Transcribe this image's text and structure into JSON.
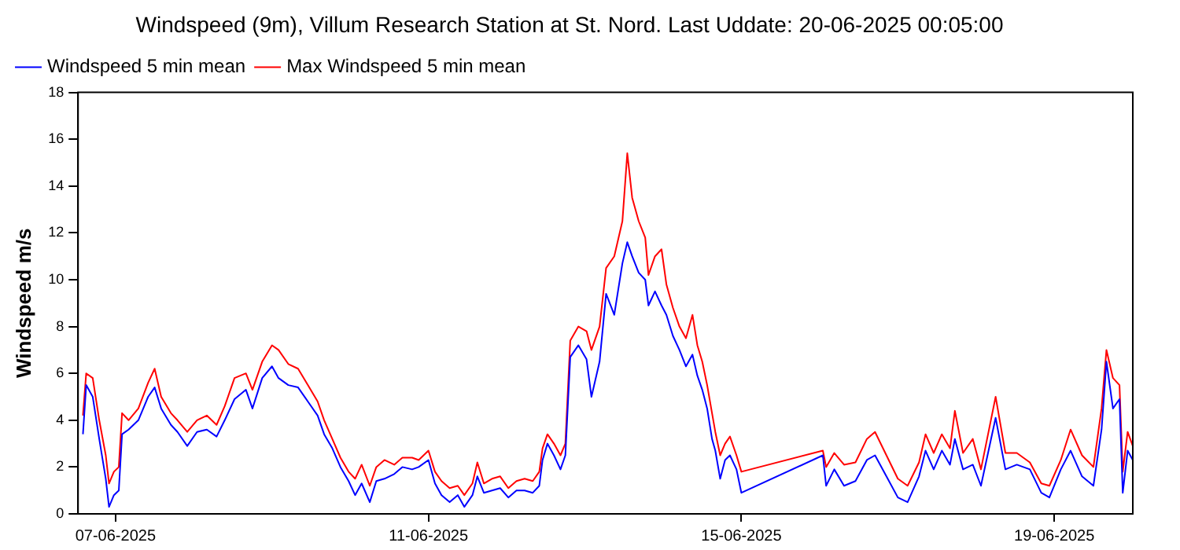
{
  "chart_data": {
    "type": "line",
    "title": "Windspeed (9m), Villum Research Station at St. Nord. Last Uddate: 20-06-2025 00:05:00",
    "ylabel": "Windspeed m/s",
    "x": [
      "2025-06-06T14:00",
      "2025-06-06T15:00",
      "2025-06-06T17:00",
      "2025-06-06T19:00",
      "2025-06-06T21:00",
      "2025-06-06T22:00",
      "2025-06-06T23:30",
      "2025-06-07T01:00",
      "2025-06-07T02:00",
      "2025-06-07T04:00",
      "2025-06-07T07:00",
      "2025-06-07T10:00",
      "2025-06-07T12:00",
      "2025-06-07T14:00",
      "2025-06-07T17:00",
      "2025-06-07T19:00",
      "2025-06-07T22:00",
      "2025-06-08T01:00",
      "2025-06-08T04:00",
      "2025-06-08T07:00",
      "2025-06-08T09:30",
      "2025-06-08T12:30",
      "2025-06-08T16:00",
      "2025-06-08T18:00",
      "2025-06-08T21:00",
      "2025-06-09T00:00",
      "2025-06-09T02:00",
      "2025-06-09T05:00",
      "2025-06-09T08:00",
      "2025-06-09T11:00",
      "2025-06-09T14:00",
      "2025-06-09T16:00",
      "2025-06-09T18:30",
      "2025-06-09T21:00",
      "2025-06-09T23:30",
      "2025-06-10T01:30",
      "2025-06-10T03:30",
      "2025-06-10T06:00",
      "2025-06-10T08:00",
      "2025-06-10T10:30",
      "2025-06-10T13:30",
      "2025-06-10T16:00",
      "2025-06-10T19:00",
      "2025-06-10T21:00",
      "2025-06-11T00:00",
      "2025-06-11T02:00",
      "2025-06-11T04:00",
      "2025-06-11T06:30",
      "2025-06-11T09:00",
      "2025-06-11T11:00",
      "2025-06-11T13:30",
      "2025-06-11T15:00",
      "2025-06-11T17:00",
      "2025-06-11T19:30",
      "2025-06-11T22:00",
      "2025-06-12T00:30",
      "2025-06-12T03:00",
      "2025-06-12T05:30",
      "2025-06-12T08:00",
      "2025-06-12T10:00",
      "2025-06-12T11:00",
      "2025-06-12T12:30",
      "2025-06-12T14:30",
      "2025-06-12T16:30",
      "2025-06-12T18:00",
      "2025-06-12T19:30",
      "2025-06-12T22:00",
      "2025-06-13T00:30",
      "2025-06-13T02:00",
      "2025-06-13T04:30",
      "2025-06-13T06:30",
      "2025-06-13T09:00",
      "2025-06-13T11:30",
      "2025-06-13T13:00",
      "2025-06-13T14:30",
      "2025-06-13T16:30",
      "2025-06-13T18:30",
      "2025-06-13T19:30",
      "2025-06-13T21:30",
      "2025-06-13T23:30",
      "2025-06-14T01:00",
      "2025-06-14T03:00",
      "2025-06-14T05:00",
      "2025-06-14T07:00",
      "2025-06-14T09:00",
      "2025-06-14T10:30",
      "2025-06-14T12:00",
      "2025-06-14T13:30",
      "2025-06-14T15:00",
      "2025-06-14T16:00",
      "2025-06-14T17:30",
      "2025-06-14T19:00",
      "2025-06-14T20:30",
      "2025-06-14T22:30",
      "2025-06-15T00:00",
      "2025-06-16T01:00",
      "2025-06-16T02:00",
      "2025-06-16T04:30",
      "2025-06-16T07:30",
      "2025-06-16T11:00",
      "2025-06-16T14:30",
      "2025-06-16T17:00",
      "2025-06-16T20:30",
      "2025-06-17T00:00",
      "2025-06-17T03:00",
      "2025-06-17T06:30",
      "2025-06-17T08:30",
      "2025-06-17T11:00",
      "2025-06-17T13:30",
      "2025-06-17T16:00",
      "2025-06-17T17:30",
      "2025-06-17T20:00",
      "2025-06-17T23:00",
      "2025-06-18T01:30",
      "2025-06-18T06:00",
      "2025-06-18T09:00",
      "2025-06-18T12:30",
      "2025-06-18T16:30",
      "2025-06-18T20:00",
      "2025-06-18T22:30",
      "2025-06-19T02:00",
      "2025-06-19T05:00",
      "2025-06-19T08:30",
      "2025-06-19T12:00",
      "2025-06-19T14:30",
      "2025-06-19T16:00",
      "2025-06-19T18:00",
      "2025-06-19T20:00",
      "2025-06-19T21:00",
      "2025-06-19T22:30",
      "2025-06-20T00:05"
    ],
    "series": [
      {
        "name": "Windspeed 5 min mean",
        "color": "#0000ff",
        "values": [
          3.4,
          5.5,
          5.0,
          3.2,
          1.5,
          0.3,
          0.8,
          1.0,
          3.4,
          3.6,
          4.0,
          5.0,
          5.4,
          4.5,
          3.8,
          3.5,
          2.9,
          3.5,
          3.6,
          3.3,
          4.0,
          4.9,
          5.3,
          4.5,
          5.8,
          6.3,
          5.8,
          5.5,
          5.4,
          4.8,
          4.2,
          3.4,
          2.8,
          2.0,
          1.4,
          0.8,
          1.3,
          0.5,
          1.4,
          1.5,
          1.7,
          2.0,
          1.9,
          2.0,
          2.3,
          1.3,
          0.8,
          0.5,
          0.8,
          0.3,
          0.8,
          1.6,
          0.9,
          1.0,
          1.1,
          0.7,
          1.0,
          1.0,
          0.9,
          1.2,
          2.3,
          3.0,
          2.5,
          1.9,
          2.5,
          6.7,
          7.2,
          6.6,
          5.0,
          6.5,
          9.4,
          8.5,
          10.7,
          11.6,
          11.0,
          10.3,
          10.0,
          8.9,
          9.5,
          8.9,
          8.5,
          7.6,
          7.0,
          6.3,
          6.8,
          5.9,
          5.3,
          4.5,
          3.2,
          2.7,
          1.5,
          2.3,
          2.5,
          1.9,
          0.9,
          2.5,
          1.2,
          1.9,
          1.2,
          1.4,
          2.3,
          2.5,
          1.6,
          0.7,
          0.5,
          1.6,
          2.7,
          1.9,
          2.7,
          2.1,
          3.2,
          1.9,
          2.1,
          1.2,
          4.1,
          1.9,
          2.1,
          1.9,
          0.9,
          0.7,
          1.9,
          2.7,
          1.6,
          1.2,
          3.6,
          6.5,
          4.5,
          4.9,
          0.9,
          2.7,
          2.3
        ]
      },
      {
        "name": "Max Windspeed 5 min mean",
        "color": "#ff0000",
        "values": [
          4.2,
          6.0,
          5.8,
          4.0,
          2.5,
          1.3,
          1.8,
          2.0,
          4.3,
          4.0,
          4.5,
          5.6,
          6.2,
          5.0,
          4.3,
          4.0,
          3.5,
          4.0,
          4.2,
          3.8,
          4.6,
          5.8,
          6.0,
          5.3,
          6.5,
          7.2,
          7.0,
          6.4,
          6.2,
          5.5,
          4.8,
          4.0,
          3.2,
          2.4,
          1.8,
          1.5,
          2.1,
          1.2,
          2.0,
          2.3,
          2.1,
          2.4,
          2.4,
          2.3,
          2.7,
          1.8,
          1.4,
          1.1,
          1.2,
          0.8,
          1.3,
          2.2,
          1.3,
          1.5,
          1.6,
          1.1,
          1.4,
          1.5,
          1.4,
          1.8,
          2.8,
          3.4,
          3.0,
          2.5,
          3.0,
          7.4,
          8.0,
          7.8,
          7.0,
          8.0,
          10.5,
          11.0,
          12.5,
          15.4,
          13.5,
          12.5,
          11.8,
          10.2,
          11.0,
          11.3,
          9.8,
          8.8,
          8.0,
          7.5,
          8.5,
          7.2,
          6.5,
          5.5,
          4.3,
          3.5,
          2.5,
          3.0,
          3.3,
          2.5,
          1.8,
          2.7,
          2.0,
          2.6,
          2.1,
          2.2,
          3.2,
          3.5,
          2.5,
          1.5,
          1.2,
          2.2,
          3.4,
          2.6,
          3.4,
          2.8,
          4.4,
          2.6,
          3.2,
          1.9,
          5.0,
          2.6,
          2.6,
          2.2,
          1.3,
          1.2,
          2.3,
          3.6,
          2.5,
          2.0,
          4.5,
          7.0,
          5.8,
          5.5,
          1.8,
          3.5,
          2.9
        ]
      }
    ],
    "xlim": [
      "2025-06-06T12:30",
      "2025-06-20T00:05"
    ],
    "xticks": [
      {
        "value": "2025-06-07",
        "label": "07-06-2025"
      },
      {
        "value": "2025-06-11",
        "label": "11-06-2025"
      },
      {
        "value": "2025-06-15",
        "label": "15-06-2025"
      },
      {
        "value": "2025-06-19",
        "label": "19-06-2025"
      }
    ],
    "ylim": [
      0,
      18
    ],
    "yticks": [
      0,
      2,
      4,
      6,
      8,
      10,
      12,
      14,
      16,
      18
    ],
    "legend": "top left",
    "marker": "none",
    "line_style": "solid",
    "grid": false
  }
}
